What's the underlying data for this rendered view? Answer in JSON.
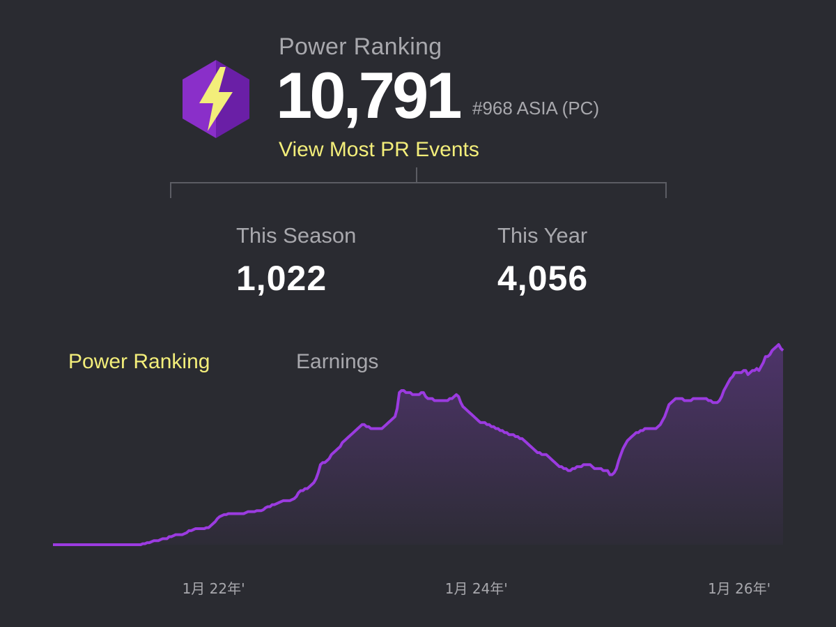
{
  "header": {
    "label": "Power Ranking",
    "value": "10,791",
    "rank": "#968 ASIA (PC)",
    "link": "View Most PR Events",
    "badge_icon": "lightning-hexagon-icon",
    "badge_colors": {
      "light": "#8a2fc9",
      "dark": "#6a1fa6",
      "bolt": "#f3ee7a"
    }
  },
  "stats": {
    "season": {
      "label": "This Season",
      "value": "1,022"
    },
    "year": {
      "label": "This Year",
      "value": "4,056"
    }
  },
  "tabs": [
    {
      "label": "Power Ranking",
      "active": true
    },
    {
      "label": "Earnings",
      "active": false
    }
  ],
  "chart_data": {
    "type": "area",
    "x_tick_labels": [
      "1月 22年'",
      "1月 24年'",
      "1月 26年'"
    ],
    "x_tick_positions": [
      0.22,
      0.58,
      0.94
    ],
    "values": [
      0,
      0,
      0,
      0,
      0,
      0,
      0,
      0,
      0,
      0,
      0,
      0,
      0,
      0,
      0,
      0,
      0,
      0,
      0,
      0,
      0,
      0,
      0,
      0,
      0,
      0,
      0,
      0,
      0,
      0,
      0,
      0,
      0,
      0,
      0,
      0,
      0,
      0,
      0,
      0,
      0,
      0.5,
      0.5,
      1,
      1,
      1.5,
      2,
      2,
      2,
      2.5,
      3,
      3,
      3,
      4,
      4,
      4.5,
      5,
      5,
      5,
      5,
      5.5,
      6,
      7,
      7,
      7.5,
      8,
      8,
      8,
      8,
      8,
      8.5,
      8.5,
      9.5,
      10.5,
      11.5,
      13,
      14,
      14.5,
      15,
      15,
      15.5,
      15.5,
      15.5,
      15.5,
      15.5,
      15.5,
      15.5,
      15.5,
      16,
      16.5,
      16.5,
      16.5,
      16.5,
      17,
      17,
      17,
      17.5,
      18.5,
      19,
      19,
      20,
      20,
      20.5,
      21,
      21.5,
      22,
      22,
      22,
      22,
      22.5,
      23,
      24,
      26,
      27,
      27,
      28,
      28,
      29,
      30,
      31,
      33,
      36,
      40,
      41,
      41,
      42,
      43,
      45,
      46,
      47,
      48,
      49,
      51,
      52,
      53,
      54,
      55,
      56,
      57,
      58,
      59,
      60,
      60,
      59,
      59,
      58,
      58,
      58,
      58,
      58,
      58,
      59,
      60,
      61,
      62,
      63,
      64,
      68,
      76,
      77,
      77,
      76,
      76,
      76,
      75,
      75,
      75,
      75,
      76,
      76,
      74,
      73,
      73,
      73,
      72,
      72,
      72,
      72,
      72,
      72,
      72,
      73,
      73,
      74,
      75,
      74,
      71,
      69,
      68,
      67,
      66,
      65,
      64,
      63,
      62,
      61,
      61,
      61,
      60,
      60,
      59,
      59,
      58,
      58,
      57,
      57,
      56,
      56,
      55,
      55,
      55,
      54,
      54,
      53,
      53,
      52,
      51,
      50,
      49,
      48,
      47,
      46,
      46,
      45,
      45,
      45,
      44,
      43,
      42,
      41,
      40,
      39,
      39,
      38,
      38,
      37,
      37,
      38,
      38,
      39,
      39,
      39,
      40,
      40,
      40,
      40,
      39,
      38,
      38,
      38,
      38,
      37,
      37,
      37,
      35,
      35,
      36,
      38,
      42,
      45,
      48,
      50,
      52,
      53,
      54,
      55,
      56,
      56,
      57,
      57,
      58,
      58,
      58,
      58,
      58,
      58,
      59,
      60,
      62,
      64,
      67,
      70,
      71,
      72,
      73,
      73,
      73,
      73,
      72,
      72,
      72,
      72,
      73,
      73,
      73,
      73,
      73,
      73,
      73,
      72,
      72,
      71,
      71,
      71,
      72,
      74,
      77,
      79,
      81,
      83,
      84,
      86,
      86,
      86,
      86,
      87,
      87,
      85,
      86,
      87,
      87,
      88,
      87,
      89,
      91,
      94,
      94,
      95,
      97,
      98,
      99,
      100,
      98,
      97
    ]
  }
}
